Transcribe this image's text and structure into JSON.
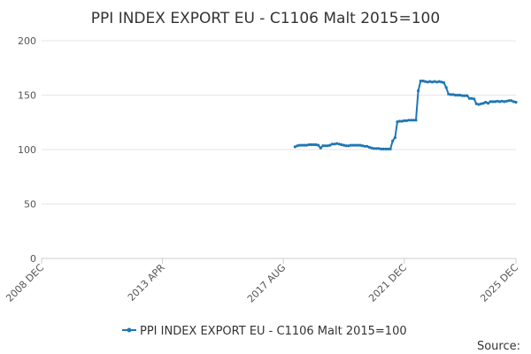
{
  "chart_data": {
    "type": "line",
    "title": "PPI INDEX EXPORT EU - C1106 Malt 2015=100",
    "xlabel": "",
    "ylabel": "",
    "ylim": [
      0,
      200
    ],
    "yticks": [
      0,
      50,
      100,
      150,
      200
    ],
    "xlim": [
      "2008-12",
      "2025-12"
    ],
    "xticks": [
      {
        "label": "2008 DEC",
        "date": "2008-12"
      },
      {
        "label": "2013 APR",
        "date": "2013-04"
      },
      {
        "label": "2017 AUG",
        "date": "2017-08"
      },
      {
        "label": "2021 DEC",
        "date": "2021-12"
      },
      {
        "label": "2025 DEC",
        "date": "2025-12"
      }
    ],
    "grid": true,
    "legend_position": "bottom",
    "source_label": "Source:",
    "colors": {
      "series": "#1f77b4",
      "grid": "#e6e6e6",
      "axis": "#cccccc",
      "text": "#333333"
    },
    "series": [
      {
        "name": "PPI INDEX EXPORT EU - C1106 Malt 2015=100",
        "points": [
          [
            "2018-01",
            102.5
          ],
          [
            "2018-02",
            103.5
          ],
          [
            "2018-03",
            104.0
          ],
          [
            "2018-04",
            104.0
          ],
          [
            "2018-05",
            104.0
          ],
          [
            "2018-06",
            104.0
          ],
          [
            "2018-07",
            104.5
          ],
          [
            "2018-08",
            104.5
          ],
          [
            "2018-09",
            104.5
          ],
          [
            "2018-10",
            104.5
          ],
          [
            "2018-11",
            104.0
          ],
          [
            "2018-12",
            101.5
          ],
          [
            "2019-01",
            103.5
          ],
          [
            "2019-02",
            103.5
          ],
          [
            "2019-03",
            103.5
          ],
          [
            "2019-04",
            104.0
          ],
          [
            "2019-05",
            105.0
          ],
          [
            "2019-06",
            105.0
          ],
          [
            "2019-07",
            105.5
          ],
          [
            "2019-08",
            105.0
          ],
          [
            "2019-09",
            104.5
          ],
          [
            "2019-10",
            104.0
          ],
          [
            "2019-11",
            103.5
          ],
          [
            "2019-12",
            103.5
          ],
          [
            "2020-01",
            104.0
          ],
          [
            "2020-02",
            104.0
          ],
          [
            "2020-03",
            104.0
          ],
          [
            "2020-04",
            104.0
          ],
          [
            "2020-05",
            104.0
          ],
          [
            "2020-06",
            103.5
          ],
          [
            "2020-07",
            103.0
          ],
          [
            "2020-08",
            103.0
          ],
          [
            "2020-09",
            102.0
          ],
          [
            "2020-10",
            101.5
          ],
          [
            "2020-11",
            101.0
          ],
          [
            "2020-12",
            101.0
          ],
          [
            "2021-01",
            101.0
          ],
          [
            "2021-02",
            100.5
          ],
          [
            "2021-03",
            100.5
          ],
          [
            "2021-04",
            100.5
          ],
          [
            "2021-05",
            100.5
          ],
          [
            "2021-06",
            100.5
          ],
          [
            "2021-07",
            108.0
          ],
          [
            "2021-08",
            111.0
          ],
          [
            "2021-09",
            125.5
          ],
          [
            "2021-10",
            126.0
          ],
          [
            "2021-11",
            126.0
          ],
          [
            "2021-12",
            126.5
          ],
          [
            "2022-01",
            126.5
          ],
          [
            "2022-02",
            127.0
          ],
          [
            "2022-03",
            127.0
          ],
          [
            "2022-04",
            127.0
          ],
          [
            "2022-05",
            127.0
          ],
          [
            "2022-06",
            154.0
          ],
          [
            "2022-07",
            163.0
          ],
          [
            "2022-08",
            163.0
          ],
          [
            "2022-09",
            162.5
          ],
          [
            "2022-10",
            162.0
          ],
          [
            "2022-11",
            162.5
          ],
          [
            "2022-12",
            162.0
          ],
          [
            "2023-01",
            162.5
          ],
          [
            "2023-02",
            162.0
          ],
          [
            "2023-03",
            162.5
          ],
          [
            "2023-04",
            162.0
          ],
          [
            "2023-05",
            161.5
          ],
          [
            "2023-06",
            157.0
          ],
          [
            "2023-07",
            151.0
          ],
          [
            "2023-08",
            150.5
          ],
          [
            "2023-09",
            150.5
          ],
          [
            "2023-10",
            150.0
          ],
          [
            "2023-11",
            150.0
          ],
          [
            "2023-12",
            150.0
          ],
          [
            "2024-01",
            149.5
          ],
          [
            "2024-02",
            149.5
          ],
          [
            "2024-03",
            149.5
          ],
          [
            "2024-04",
            147.0
          ],
          [
            "2024-05",
            147.0
          ],
          [
            "2024-06",
            146.5
          ],
          [
            "2024-07",
            142.0
          ],
          [
            "2024-08",
            141.5
          ],
          [
            "2024-09",
            142.0
          ],
          [
            "2024-10",
            142.5
          ],
          [
            "2024-11",
            143.5
          ],
          [
            "2024-12",
            142.5
          ],
          [
            "2025-01",
            144.0
          ],
          [
            "2025-02",
            144.0
          ],
          [
            "2025-03",
            144.0
          ],
          [
            "2025-04",
            144.5
          ],
          [
            "2025-05",
            144.0
          ],
          [
            "2025-06",
            144.5
          ],
          [
            "2025-07",
            144.0
          ],
          [
            "2025-08",
            144.5
          ],
          [
            "2025-09",
            145.0
          ],
          [
            "2025-10",
            145.0
          ],
          [
            "2025-11",
            144.0
          ],
          [
            "2025-12",
            143.5
          ]
        ]
      }
    ]
  }
}
